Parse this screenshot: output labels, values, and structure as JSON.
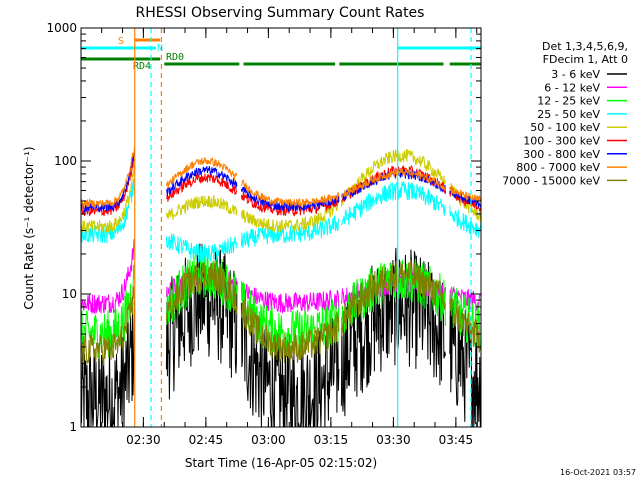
{
  "chart_data": {
    "type": "line",
    "title": "RHESSI Observing Summary Count Rates",
    "xlabel": "Start Time (16-Apr-05 02:15:02)",
    "ylabel": "Count Rate (s⁻¹ detector⁻¹)",
    "x_scale": "time (minutes since start)",
    "xlim": [
      0,
      96
    ],
    "ylim": [
      1,
      1000
    ],
    "y_scale": "log",
    "x_ticks": [
      {
        "label": "02:30",
        "value": 14.97
      },
      {
        "label": "02:45",
        "value": 29.97
      },
      {
        "label": "03:00",
        "value": 44.97
      },
      {
        "label": "03:15",
        "value": 59.97
      },
      {
        "label": "03:30",
        "value": 74.97
      },
      {
        "label": "03:45",
        "value": 89.97
      }
    ],
    "y_ticks": [
      {
        "label": "1",
        "value": 1
      },
      {
        "label": "10",
        "value": 10
      },
      {
        "label": "100",
        "value": 100
      },
      {
        "label": "1000",
        "value": 1000
      }
    ],
    "legend": {
      "placement": "right",
      "header": [
        "Det 1,3,4,5,6,9,",
        "FDecim 1, Att 0"
      ]
    },
    "series": [
      {
        "name": "3 - 6 keV",
        "color": "#000000",
        "base": 1.6,
        "peak1": 9,
        "peak2": 8,
        "noise": 0.45
      },
      {
        "name": "6 - 12 keV",
        "color": "#ff00ff",
        "base": 8.5,
        "peak1": 14,
        "peak2": 12,
        "noise": 0.08
      },
      {
        "name": "12 - 25 keV",
        "color": "#00ff00",
        "base": 5,
        "peak1": 14,
        "peak2": 13,
        "noise": 0.18
      },
      {
        "name": "25 - 50 keV",
        "color": "#00ffff",
        "base": 28,
        "peak1": 20,
        "peak2": 60,
        "noise": 0.07
      },
      {
        "name": "50 - 100 keV",
        "color": "#cccc00",
        "base": 32,
        "peak1": 50,
        "peak2": 110,
        "noise": 0.05
      },
      {
        "name": "100 - 300 keV",
        "color": "#ff0000",
        "base": 42,
        "peak1": 75,
        "peak2": 85,
        "noise": 0.04
      },
      {
        "name": "300 - 800 keV",
        "color": "#0000ff",
        "base": 45,
        "peak1": 85,
        "peak2": 80,
        "noise": 0.035
      },
      {
        "name": "800 - 7000 keV",
        "color": "#ff8000",
        "base": 48,
        "peak1": 100,
        "peak2": 82,
        "noise": 0.03
      },
      {
        "name": "7000 - 15000 keV",
        "color": "#808000",
        "base": 3.8,
        "peak1": 14,
        "peak2": 14,
        "noise": 0.12
      }
    ],
    "data_segments": [
      [
        0,
        12.9
      ],
      [
        20.5,
        37.5
      ],
      [
        38.5,
        62
      ],
      [
        62.5,
        87.5
      ],
      [
        88.5,
        96
      ]
    ],
    "peak_centers": {
      "p1": 30,
      "p2": 77,
      "width1": 9,
      "width2": 12
    },
    "flags": [
      {
        "label": "S",
        "color": "#ff8000",
        "level": 1.0,
        "segments": [
          [
            13,
            19
          ]
        ]
      },
      {
        "label": "N",
        "color": "#00ffff",
        "level": 0.82,
        "segments": [
          [
            0,
            18
          ],
          [
            76,
            96
          ]
        ]
      },
      {
        "label": "RD4",
        "color": "#008000",
        "level": 0.6,
        "segments": [
          [
            0,
            19
          ]
        ]
      },
      {
        "label": "RD0",
        "color": "#008000",
        "level": 0.55,
        "segments": [
          [
            20,
            38
          ],
          [
            39,
            61
          ],
          [
            62,
            87
          ],
          [
            88.5,
            96
          ]
        ]
      }
    ],
    "vertical_markers": [
      {
        "x": 12.9,
        "color": "#ff8000",
        "style": "solid"
      },
      {
        "x": 16.8,
        "color": "#00ffff",
        "style": "dashed"
      },
      {
        "x": 19.3,
        "color": "#ff8000",
        "style": "dashed"
      },
      {
        "x": 76,
        "color": "#00ffff",
        "style": "solid"
      },
      {
        "x": 93.6,
        "color": "#00ffff",
        "style": "dashed"
      }
    ],
    "footer_date": "16-Oct-2021 03:57"
  }
}
